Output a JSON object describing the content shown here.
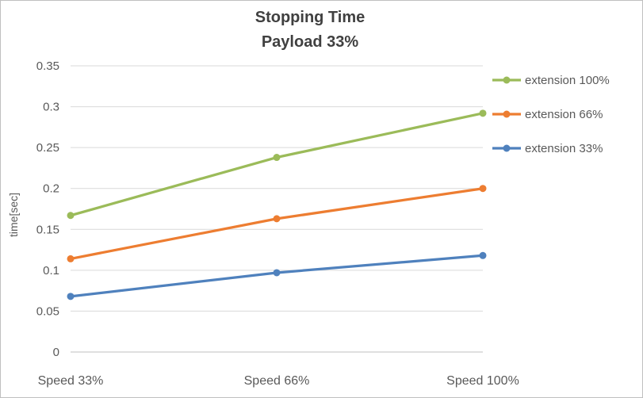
{
  "chart_data": {
    "type": "line",
    "title": "Stopping Time",
    "subtitle": "Payload 33%",
    "ylabel": "time[sec]",
    "xlabel": "",
    "ylim": [
      0,
      0.35
    ],
    "ytick_step": 0.05,
    "grid": "horizontal",
    "legend_position": "right",
    "categories": [
      "Speed 33%",
      "Speed 66%",
      "Speed 100%"
    ],
    "series": [
      {
        "name": "extension 100%",
        "color": "#9BBB59",
        "values": [
          0.167,
          0.238,
          0.292
        ]
      },
      {
        "name": "extension 66%",
        "color": "#ED7D31",
        "values": [
          0.114,
          0.163,
          0.2
        ]
      },
      {
        "name": "extension 33%",
        "color": "#4F81BD",
        "values": [
          0.068,
          0.097,
          0.118
        ]
      }
    ]
  },
  "colors": {
    "grid": "#D9D9D9",
    "axis_line": "#BFBFBF",
    "axis_text": "#595959",
    "title_text": "#404040",
    "border": "#BFBFBF",
    "background": "#FFFFFF"
  }
}
